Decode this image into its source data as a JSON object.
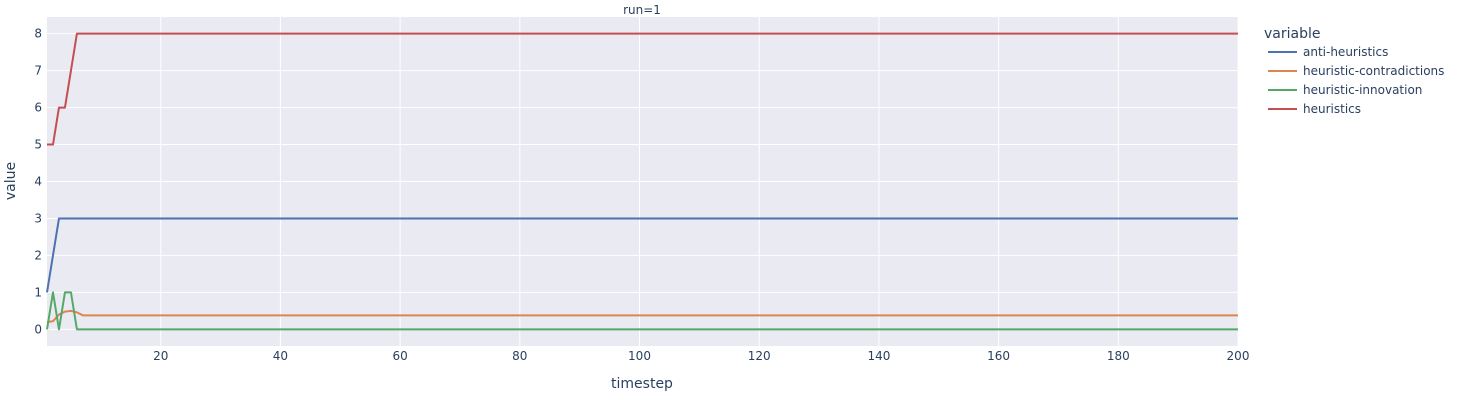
{
  "chart_data": {
    "type": "line",
    "facet_title": "run=1",
    "xlabel": "timestep",
    "ylabel": "value",
    "xlim": [
      1,
      200
    ],
    "ylim": [
      -0.45,
      8.45
    ],
    "x_ticks": [
      20,
      40,
      60,
      80,
      100,
      120,
      140,
      160,
      180,
      200
    ],
    "y_ticks": [
      0,
      1,
      2,
      3,
      4,
      5,
      6,
      7,
      8
    ],
    "grid": true,
    "legend": {
      "title": "variable",
      "position": "right"
    },
    "series": [
      {
        "name": "anti-heuristics",
        "color": "#4c72b0",
        "points": [
          [
            1,
            1
          ],
          [
            2,
            2
          ],
          [
            3,
            3
          ],
          [
            200,
            3
          ]
        ]
      },
      {
        "name": "heuristic-contradictions",
        "color": "#dd8452",
        "points": [
          [
            1,
            0.2
          ],
          [
            2,
            0.22
          ],
          [
            3,
            0.4
          ],
          [
            4,
            0.48
          ],
          [
            5,
            0.5
          ],
          [
            6,
            0.46
          ],
          [
            7,
            0.38
          ],
          [
            200,
            0.38
          ]
        ]
      },
      {
        "name": "heuristic-innovation",
        "color": "#55a868",
        "points": [
          [
            1,
            0
          ],
          [
            2,
            1
          ],
          [
            3,
            0
          ],
          [
            4,
            1
          ],
          [
            5,
            1
          ],
          [
            6,
            0
          ],
          [
            200,
            0
          ]
        ]
      },
      {
        "name": "heuristics",
        "color": "#c44e52",
        "points": [
          [
            1,
            5
          ],
          [
            2,
            5
          ],
          [
            3,
            6
          ],
          [
            4,
            6
          ],
          [
            5,
            7
          ],
          [
            6,
            8
          ],
          [
            200,
            8
          ]
        ]
      }
    ]
  }
}
